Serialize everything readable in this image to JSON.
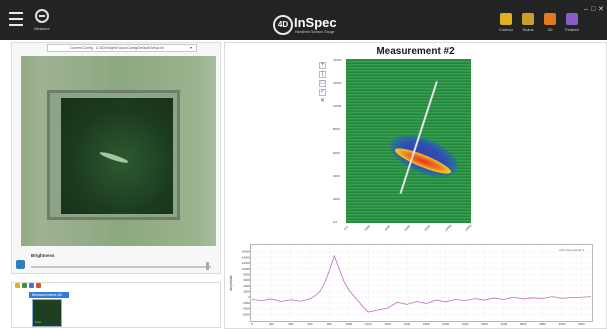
{
  "header": {
    "measure_label": "Measure",
    "logo_badge": "4D",
    "logo_word": "InSpec",
    "logo_tagline": "Handheld Surface Gauge",
    "tools": [
      {
        "label": "Contour",
        "color": "#e0b020"
      },
      {
        "label": "Scans",
        "color": "#c8a028"
      },
      {
        "label": "3D",
        "color": "#e07a20"
      },
      {
        "label": "Feature",
        "color": "#8a5cc8"
      }
    ],
    "window_controls": [
      "–",
      "□",
      "✕"
    ]
  },
  "config": {
    "label": "Current Config",
    "path": "C:\\4DInSight\\Focus\\Config\\Default\\Setup.ini"
  },
  "camera": {
    "brightness_label": "Brightness"
  },
  "measurements": {
    "item_label": "Measurement #2",
    "thumb_label": "Lin-4"
  },
  "scan": {
    "title": "Measurement #2",
    "x_ticks": [
      "0.0",
      "2000",
      "4000",
      "6000",
      "8000",
      "10000",
      "12000"
    ],
    "y_ticks": [
      "14000",
      "12000",
      "10000",
      "8000",
      "6000",
      "4000",
      "2000",
      "0.0"
    ]
  },
  "chart_data": {
    "type": "line",
    "title": "",
    "xlabel": "",
    "ylabel": "Amplitude",
    "legend": "Line Cursor 1",
    "legend_position": "top-right",
    "grid": true,
    "xlim": [
      0,
      3500
    ],
    "ylim": [
      -8000,
      18000
    ],
    "x_ticks": [
      0,
      200,
      400,
      600,
      800,
      1000,
      1200,
      1400,
      1600,
      1800,
      2000,
      2200,
      2400,
      2600,
      2800,
      3000,
      3200,
      3400
    ],
    "y_ticks": [
      -6000,
      -4000,
      -2000,
      0,
      2000,
      4000,
      6000,
      8000,
      10000,
      12000,
      14000,
      16000
    ],
    "series": [
      {
        "name": "Line Cursor 1",
        "color": "#c070c0",
        "x": [
          0,
          100,
          200,
          300,
          400,
          500,
          600,
          650,
          700,
          750,
          800,
          850,
          900,
          950,
          1000,
          1050,
          1100,
          1150,
          1200,
          1300,
          1400,
          1500,
          1600,
          1700,
          1800,
          1900,
          2000,
          2100,
          2200,
          2300,
          2400,
          2500,
          2600,
          2700,
          2800,
          2900,
          3000,
          3100,
          3200,
          3300,
          3400,
          3500
        ],
        "y": [
          -800,
          -1200,
          -600,
          -1500,
          -900,
          -1400,
          -600,
          500,
          2000,
          5000,
          9500,
          14500,
          10000,
          5500,
          2500,
          500,
          -1500,
          -3500,
          -5200,
          -4500,
          -3800,
          -1800,
          -2500,
          -1500,
          -2200,
          -1000,
          -1600,
          -800,
          -1200,
          -500,
          -1000,
          -300,
          -800,
          0,
          -600,
          -200,
          -500,
          200,
          -400,
          -100,
          0,
          200
        ]
      }
    ]
  }
}
